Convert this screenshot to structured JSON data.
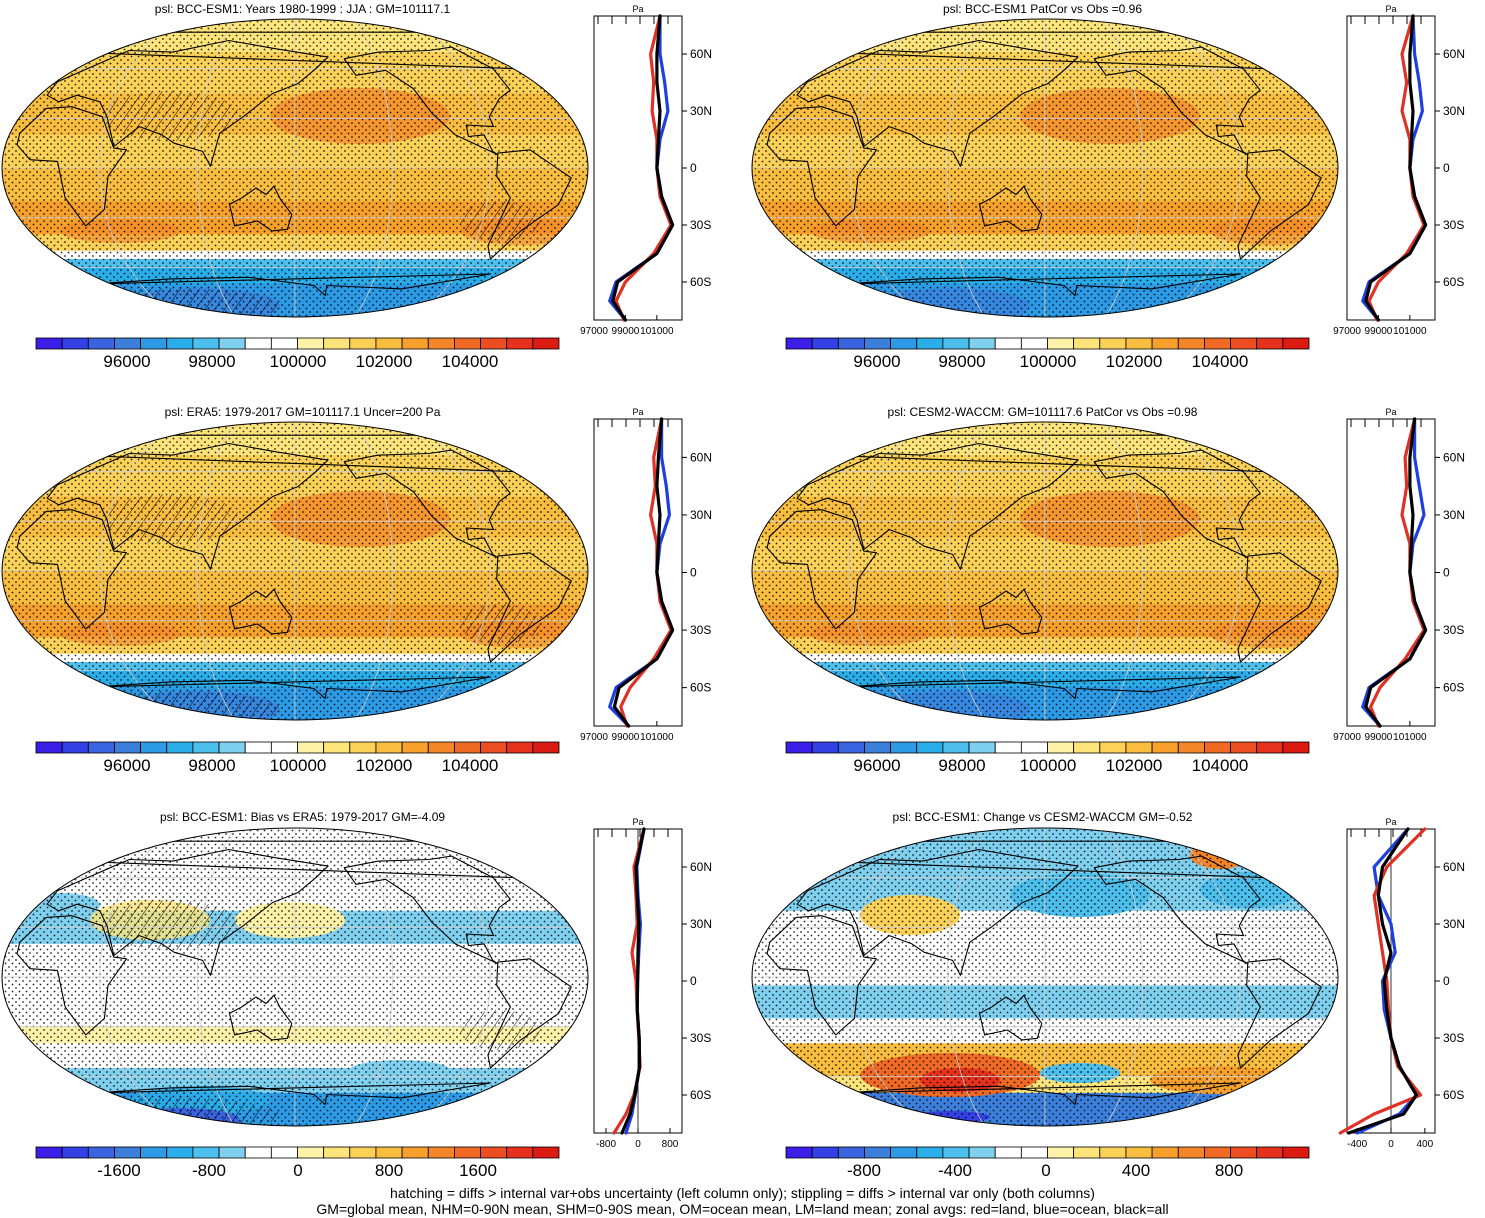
{
  "panels": [
    {
      "id": "p1",
      "title": "psl: BCC-ESM1: Years 1980-1999 : JJA : GM=101117.1",
      "kind": "abs",
      "zonal": {
        "xticks": [
          "97000",
          "99000",
          "101000"
        ],
        "unit": "Pa",
        "yticks": [
          "60N",
          "30N",
          "0",
          "30S",
          "60S"
        ]
      }
    },
    {
      "id": "p2",
      "title": "psl: BCC-ESM1 PatCor vs Obs =0.96",
      "kind": "abs",
      "zonal": {
        "xticks": [
          "97000",
          "99000",
          "101000"
        ],
        "unit": "Pa",
        "yticks": [
          "60N",
          "30N",
          "0",
          "30S",
          "60S"
        ]
      }
    },
    {
      "id": "p3",
      "title": "psl: ERA5: 1979-2017 GM=101117.1 Uncer=200 Pa",
      "kind": "abs",
      "zonal": {
        "xticks": [
          "97000",
          "99000",
          "101000"
        ],
        "unit": "Pa",
        "yticks": [
          "60N",
          "30N",
          "0",
          "30S",
          "60S"
        ]
      }
    },
    {
      "id": "p4",
      "title": "psl: CESM2-WACCM: GM=101117.6 PatCor vs Obs =0.98",
      "kind": "abs",
      "zonal": {
        "xticks": [
          "97000",
          "99000",
          "101000"
        ],
        "unit": "Pa",
        "yticks": [
          "60N",
          "30N",
          "0",
          "30S",
          "60S"
        ]
      }
    },
    {
      "id": "p5",
      "title": "psl: BCC-ESM1: Bias vs ERA5: 1979-2017 GM=-4.09",
      "kind": "bias",
      "zonal": {
        "xticks": [
          "-800",
          "0",
          "800"
        ],
        "unit": "Pa",
        "yticks": [
          "60N",
          "30N",
          "0",
          "30S",
          "60S"
        ]
      }
    },
    {
      "id": "p6",
      "title": "psl: BCC-ESM1: Change vs CESM2-WACCM GM=-0.52",
      "kind": "change",
      "zonal": {
        "xticks": [
          "-400",
          "0",
          "400"
        ],
        "unit": "Pa",
        "yticks": [
          "60N",
          "30N",
          "0",
          "30S",
          "60S"
        ]
      }
    }
  ],
  "colorbars": {
    "abs": {
      "labels": [
        "96000",
        "98000",
        "100000",
        "102000",
        "104000"
      ]
    },
    "bias": {
      "labels": [
        "-1600",
        "-800",
        "0",
        "800",
        "1600"
      ]
    },
    "change": {
      "labels": [
        "-800",
        "-400",
        "0",
        "400",
        "800"
      ]
    }
  },
  "colors": {
    "scale": [
      "#3b1ee8",
      "#3340e6",
      "#3a63e0",
      "#3b7fdb",
      "#2d9ae6",
      "#2aaee9",
      "#4cbfec",
      "#7fd0ef",
      "#ffffff",
      "#ffffff",
      "#fdf2a8",
      "#fde47b",
      "#fbd158",
      "#f9bd3f",
      "#f7a02b",
      "#f4862a",
      "#f06a26",
      "#ec4d21",
      "#e6311c",
      "#dc1a14"
    ],
    "land": "#e03127",
    "ocean": "#1f3fe0",
    "all": "#000000"
  },
  "footer": {
    "line1": "hatching = diffs > internal var+obs uncertainty (left column only); stippling = diffs > internal var only (both columns)",
    "line2": "GM=global mean, NHM=0-90N mean, SHM=0-90S mean, OM=ocean mean, LM=land mean; zonal avgs: red=land, blue=ocean, black=all"
  },
  "chart_data": [
    {
      "type": "heatmap",
      "title": "psl: BCC-ESM1: Years 1980-1999 : JJA : GM=101117.1",
      "units": "Pa",
      "colorbar_ticks": [
        96000,
        98000,
        100000,
        102000,
        104000
      ],
      "zonal_mean": {
        "lat": [
          80,
          60,
          45,
          30,
          15,
          0,
          -15,
          -30,
          -45,
          -60,
          -70,
          -80
        ],
        "all": [
          101200,
          101000,
          101000,
          101200,
          101100,
          101000,
          101300,
          102000,
          101000,
          98500,
          98200,
          99000
        ],
        "land": [
          101200,
          100600,
          100800,
          100700,
          101000,
          101000,
          101200,
          101900,
          100800,
          99000,
          98400,
          98900
        ],
        "ocean": [
          101200,
          101200,
          101500,
          101700,
          101200,
          101000,
          101300,
          102000,
          101000,
          98400,
          98000,
          99000
        ]
      }
    },
    {
      "type": "heatmap",
      "title": "psl: BCC-ESM1 PatCor vs Obs =0.96",
      "units": "Pa",
      "colorbar_ticks": [
        96000,
        98000,
        100000,
        102000,
        104000
      ],
      "zonal_mean": {
        "lat": [
          80,
          60,
          45,
          30,
          15,
          0,
          -15,
          -30,
          -45,
          -60,
          -70,
          -80
        ],
        "all": [
          101200,
          101000,
          101000,
          101200,
          101100,
          101000,
          101300,
          102000,
          101000,
          98500,
          98200,
          99000
        ],
        "land": [
          101200,
          100500,
          100800,
          100500,
          101000,
          101000,
          101200,
          101900,
          100800,
          99000,
          98400,
          98900
        ],
        "ocean": [
          101200,
          101300,
          101600,
          101800,
          101200,
          101000,
          101300,
          102000,
          101000,
          98400,
          98000,
          99000
        ]
      }
    },
    {
      "type": "heatmap",
      "title": "psl: ERA5: 1979-2017 GM=101117.1 Uncer=200 Pa",
      "units": "Pa",
      "colorbar_ticks": [
        96000,
        98000,
        100000,
        102000,
        104000
      ],
      "zonal_mean": {
        "lat": [
          80,
          60,
          45,
          30,
          15,
          0,
          -15,
          -30,
          -45,
          -60,
          -70,
          -80
        ],
        "all": [
          101300,
          101100,
          101000,
          101200,
          101100,
          101000,
          101300,
          102000,
          101000,
          98600,
          98300,
          99200
        ],
        "land": [
          101300,
          100800,
          100900,
          100600,
          101000,
          101000,
          101200,
          101900,
          100800,
          99300,
          98700,
          99100
        ],
        "ocean": [
          101300,
          101300,
          101600,
          101800,
          101200,
          101000,
          101300,
          102000,
          101000,
          98400,
          98000,
          99200
        ]
      }
    },
    {
      "type": "heatmap",
      "title": "psl: CESM2-WACCM: GM=101117.6 PatCor vs Obs =0.98",
      "units": "Pa",
      "colorbar_ticks": [
        96000,
        98000,
        100000,
        102000,
        104000
      ],
      "zonal_mean": {
        "lat": [
          80,
          60,
          45,
          30,
          15,
          0,
          -15,
          -30,
          -45,
          -60,
          -70,
          -80
        ],
        "all": [
          101300,
          101000,
          101000,
          101200,
          101100,
          101000,
          101300,
          102000,
          101000,
          98500,
          98200,
          99100
        ],
        "land": [
          101300,
          100700,
          100800,
          100500,
          101000,
          101000,
          101200,
          101900,
          100700,
          99100,
          98500,
          99000
        ],
        "ocean": [
          101300,
          101300,
          101600,
          101900,
          101200,
          101000,
          101300,
          102000,
          101000,
          98400,
          98000,
          99100
        ]
      }
    },
    {
      "type": "heatmap",
      "title": "psl: BCC-ESM1: Bias vs ERA5: 1979-2017 GM=-4.09",
      "units": "Pa",
      "colorbar_ticks": [
        -1600,
        -800,
        0,
        800,
        1600
      ],
      "zonal_mean": {
        "lat": [
          80,
          60,
          45,
          30,
          15,
          0,
          -15,
          -30,
          -45,
          -60,
          -70,
          -80
        ],
        "all": [
          150,
          -50,
          -20,
          20,
          0,
          -10,
          -20,
          30,
          40,
          -80,
          -200,
          -400
        ],
        "land": [
          150,
          -100,
          -50,
          -20,
          -150,
          -50,
          -20,
          20,
          50,
          -100,
          -300,
          -600
        ],
        "ocean": [
          150,
          -30,
          0,
          60,
          20,
          -10,
          -20,
          30,
          40,
          -70,
          -150,
          -300
        ]
      }
    },
    {
      "type": "heatmap",
      "title": "psl: BCC-ESM1: Change vs CESM2-WACCM GM=-0.52",
      "units": "Pa",
      "colorbar_ticks": [
        -800,
        -400,
        0,
        400,
        800
      ],
      "zonal_mean": {
        "lat": [
          80,
          60,
          45,
          30,
          15,
          0,
          -15,
          -30,
          -45,
          -60,
          -70,
          -80
        ],
        "all": [
          200,
          -100,
          -150,
          -100,
          0,
          -80,
          -50,
          0,
          100,
          300,
          150,
          -500
        ],
        "land": [
          400,
          -50,
          -200,
          -150,
          -100,
          -50,
          -30,
          0,
          80,
          350,
          -200,
          -600
        ],
        "ocean": [
          200,
          -200,
          -150,
          0,
          50,
          -100,
          -80,
          0,
          100,
          300,
          100,
          -400
        ]
      }
    }
  ]
}
